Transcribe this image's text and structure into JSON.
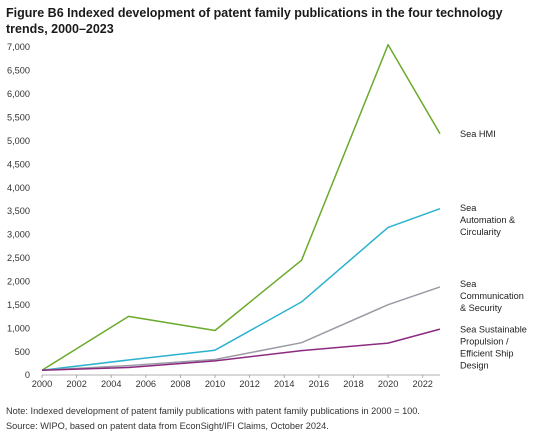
{
  "chart_data": {
    "type": "line",
    "title": "Figure B6 Indexed development of patent family publications in the four technology trends, 2000–2023",
    "xlabel": "",
    "ylabel": "",
    "x": [
      2000,
      2005,
      2010,
      2015,
      2020,
      2023
    ],
    "xticks": [
      "2000",
      "2002",
      "2004",
      "2006",
      "2008",
      "2010",
      "2012",
      "2014",
      "2016",
      "2018",
      "2020",
      "2022"
    ],
    "xlim": [
      2000,
      2023
    ],
    "ylim": [
      0,
      7000
    ],
    "yticks": [
      "0",
      "500",
      "1,000",
      "1,500",
      "2,000",
      "2,500",
      "3,000",
      "3,500",
      "4,000",
      "4,500",
      "5,000",
      "5,500",
      "6,000",
      "6,500",
      "7,000"
    ],
    "grid": false,
    "legend": "line-end labels",
    "series": [
      {
        "name": "Sea HMI",
        "color": "#6aaa2a",
        "values": [
          100,
          1250,
          950,
          2450,
          7050,
          5150
        ]
      },
      {
        "name": "Sea Automation & Circularity",
        "color": "#2bb2cf",
        "values": [
          100,
          320,
          530,
          1560,
          3150,
          3550
        ]
      },
      {
        "name": "Sea Communication & Security",
        "color": "#9b9ba6",
        "values": [
          100,
          200,
          330,
          690,
          1500,
          1880
        ]
      },
      {
        "name": "Sea Sustainable Propulsion / Efficient Ship Design",
        "color": "#8c2a80",
        "values": [
          100,
          160,
          300,
          520,
          680,
          980
        ]
      }
    ],
    "series_label_lines": [
      [
        "Sea HMI"
      ],
      [
        "Sea",
        "Automation &",
        "Circularity"
      ],
      [
        "Sea",
        "Communication",
        "& Security"
      ],
      [
        "Sea Sustainable",
        "Propulsion /",
        "Efficient Ship",
        "Design"
      ]
    ]
  },
  "footer": {
    "note": "Note: Indexed development of patent family publications with patent family publications in 2000 = 100.",
    "source": "Source: WIPO, based on patent data from EconSight/IFI Claims, October 2024."
  }
}
